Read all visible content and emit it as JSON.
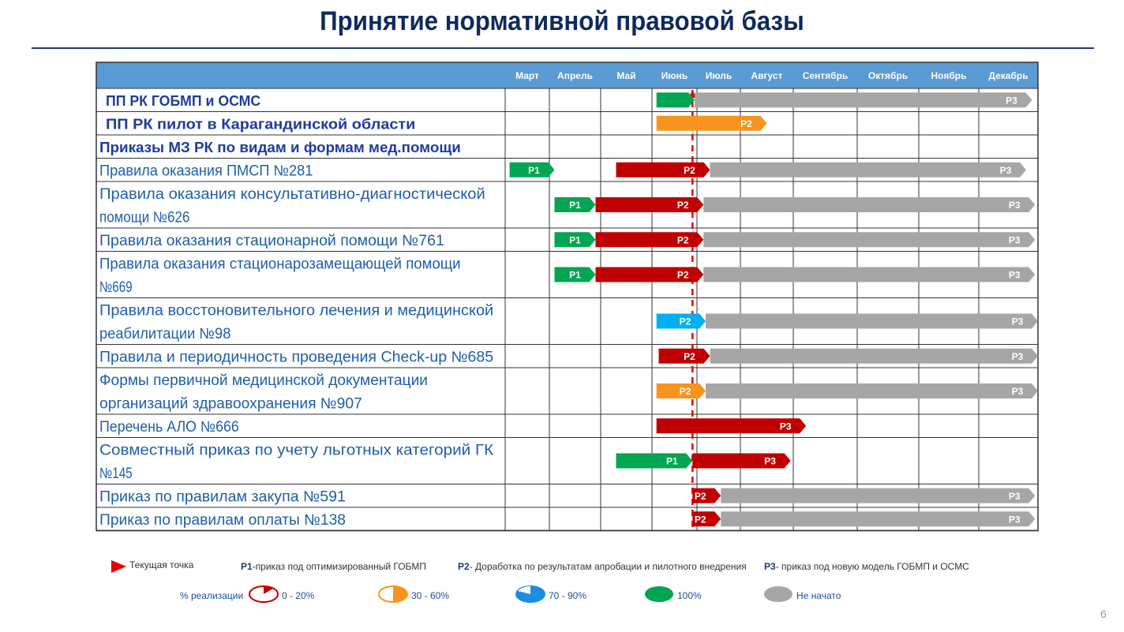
{
  "title": "Принятие нормативной правовой базы",
  "page_number": "6",
  "colors": {
    "header": "#5b9bd5",
    "green": "#00a651",
    "orange": "#f7941d",
    "red": "#c00000",
    "cyan": "#00b0f0",
    "gray": "#a6a6a6",
    "row_text_bold": "#1f3b9e",
    "row_text": "#1f5faa"
  },
  "chart_data": {
    "type": "gantt",
    "months": [
      "Март",
      "Апрель",
      "Май",
      "Июнь",
      "Июль",
      "Август",
      "Сентябрь",
      "Октябрь",
      "Ноябрь",
      "Декабрь"
    ],
    "current_point_month_index": 3.9,
    "rows": [
      {
        "label": "ПП РК ГОБМП и ОСМС",
        "style": "bold",
        "lines": 1,
        "bars": [
          {
            "start": 3.1,
            "end": 3.95,
            "color": "green",
            "label": ""
          },
          {
            "start": 3.95,
            "end": 9.9,
            "color": "gray",
            "label": "Р3"
          }
        ]
      },
      {
        "label": "ПП РК пилот в Карагандинской области",
        "style": "bold",
        "lines": 1,
        "bars": [
          {
            "start": 3.1,
            "end": 5.5,
            "color": "orange",
            "label": "Р2"
          }
        ]
      },
      {
        "label": "Приказы МЗ РК по видам и формам мед.помощи",
        "style": "heading",
        "lines": 1,
        "bars": []
      },
      {
        "label": "Правила оказания ПМСП №281",
        "style": "normal",
        "lines": 1,
        "bars": [
          {
            "start": 0.1,
            "end": 1.1,
            "color": "green",
            "label": "Р1"
          },
          {
            "start": 2.3,
            "end": 4.3,
            "color": "red",
            "label": "Р2"
          },
          {
            "start": 4.3,
            "end": 9.8,
            "color": "gray",
            "label": "Р3"
          }
        ]
      },
      {
        "label": "Правила оказания консультативно-диагностической помощи №626",
        "style": "normal",
        "lines": 2,
        "line1": "Правила оказания консультативно-диагностической",
        "line2": "помощи №626",
        "bars": [
          {
            "start": 1.1,
            "end": 1.9,
            "color": "green",
            "label": "Р1"
          },
          {
            "start": 1.9,
            "end": 4.15,
            "color": "red",
            "label": "Р2"
          },
          {
            "start": 4.15,
            "end": 9.95,
            "color": "gray",
            "label": "Р3"
          }
        ]
      },
      {
        "label": "Правила оказания стационарной помощи  №761",
        "style": "normal",
        "lines": 1,
        "bars": [
          {
            "start": 1.1,
            "end": 1.9,
            "color": "green",
            "label": "Р1"
          },
          {
            "start": 1.9,
            "end": 4.15,
            "color": "red",
            "label": "Р2"
          },
          {
            "start": 4.15,
            "end": 9.95,
            "color": "gray",
            "label": "Р3"
          }
        ]
      },
      {
        "label": "Правила оказания стационарозамещающей помощи №669",
        "style": "normal",
        "lines": 2,
        "line1": "Правила оказания стационарозамещающей помощи",
        "line2": "№669",
        "bars": [
          {
            "start": 1.1,
            "end": 1.9,
            "color": "green",
            "label": "Р1"
          },
          {
            "start": 1.9,
            "end": 4.15,
            "color": "red",
            "label": "Р2"
          },
          {
            "start": 4.15,
            "end": 9.95,
            "color": "gray",
            "label": "Р3"
          }
        ]
      },
      {
        "label": "Правила восстоновительного лечения и медицинской реабилитации №98",
        "style": "normal",
        "lines": 2,
        "line1": "Правила восстоновительного лечения и медицинской",
        "line2": "реабилитации №98",
        "bars": [
          {
            "start": 3.1,
            "end": 4.2,
            "color": "cyan",
            "label": "Р2"
          },
          {
            "start": 4.2,
            "end": 10.0,
            "color": "gray",
            "label": "Р3"
          }
        ]
      },
      {
        "label": "Правила и периодичность проведения Check-up №685",
        "style": "normal",
        "lines": 1,
        "bars": [
          {
            "start": 3.15,
            "end": 4.3,
            "color": "red",
            "label": "Р2"
          },
          {
            "start": 4.3,
            "end": 10.0,
            "color": "gray",
            "label": "Р3"
          }
        ]
      },
      {
        "label": "Формы первичной медицинской документации организаций здравоохранения №907",
        "style": "normal",
        "lines": 2,
        "line1": "Формы первичной медицинской документации",
        "line2": "организаций здравоохранения №907",
        "bars": [
          {
            "start": 3.1,
            "end": 4.2,
            "color": "orange",
            "label": "Р2"
          },
          {
            "start": 4.2,
            "end": 10.0,
            "color": "gray",
            "label": "Р3"
          }
        ]
      },
      {
        "label": "Перечень АЛО №666",
        "style": "normal",
        "lines": 1,
        "bars": [
          {
            "start": 3.1,
            "end": 6.2,
            "color": "red",
            "label": "Р3"
          }
        ]
      },
      {
        "label": "Совместный приказ по учету льготных категорий ГК №145",
        "style": "normal",
        "lines": 2,
        "line1": "Совместный приказ по учету льготных категорий ГК",
        "line2": "№145",
        "bars": [
          {
            "start": 2.3,
            "end": 3.9,
            "color": "green",
            "label": "Р1"
          },
          {
            "start": 3.9,
            "end": 5.95,
            "color": "red",
            "label": "Р3"
          }
        ]
      },
      {
        "label": "Приказ по правилам закупа №591",
        "style": "normal",
        "lines": 1,
        "bars": [
          {
            "start": 3.9,
            "end": 4.55,
            "color": "red",
            "label": "Р2"
          },
          {
            "start": 4.55,
            "end": 9.95,
            "color": "gray",
            "label": "Р3"
          }
        ]
      },
      {
        "label": "Приказ по правилам оплаты №138",
        "style": "normal",
        "lines": 1,
        "bars": [
          {
            "start": 3.9,
            "end": 4.55,
            "color": "red",
            "label": "Р2"
          },
          {
            "start": 4.55,
            "end": 9.95,
            "color": "gray",
            "label": "Р3"
          }
        ]
      }
    ]
  },
  "legend": {
    "current_point": "Текущая точка",
    "p1_code": "Р1",
    "p1_text": "-приказ под оптимизированный ГОБМП",
    "p2_code": "Р2",
    "p2_text": "- Доработка по результатам апробации и пилотного внедрения",
    "p3_code": "Р3",
    "p3_text": "- приказ под новую модель ГОБМП и ОСМС",
    "realization_label": "% реализации",
    "r1": "0 - 20%",
    "r2": "30 - 60%",
    "r3": "70 - 90%",
    "r4": "100%",
    "r5": "Не начато"
  }
}
